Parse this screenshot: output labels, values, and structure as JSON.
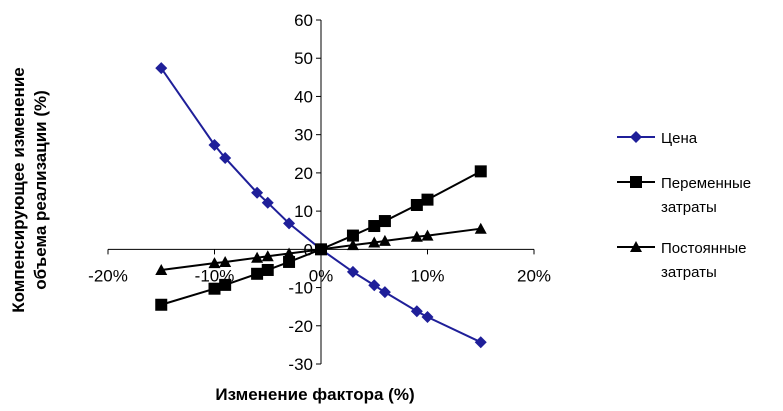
{
  "chart_data": {
    "type": "line",
    "xlabel": "Изменение  фактора (%)",
    "ylabel_lines": [
      "Компенсирующее  изменение",
      "объема реализации  (%)"
    ],
    "xlim": [
      -0.2,
      0.2
    ],
    "ylim": [
      -30,
      60
    ],
    "x_ticks": [
      -0.2,
      -0.1,
      0,
      0.1,
      0.2
    ],
    "x_tick_labels": [
      "-20%",
      "-10%",
      "0%",
      "10%",
      "20%"
    ],
    "y_ticks": [
      -30,
      -20,
      -10,
      0,
      10,
      20,
      30,
      40,
      50,
      60
    ],
    "y_tick_labels": [
      "-30",
      "-20",
      "-10",
      "0",
      "10",
      "20",
      "30",
      "40",
      "50",
      "60"
    ],
    "grid": false,
    "legend_position": "right",
    "series": [
      {
        "name": "Цена",
        "color": "#1f1f99",
        "marker": "diamond",
        "points": [
          [
            -0.15,
            47.4
          ],
          [
            -0.1,
            27.3
          ],
          [
            -0.09,
            23.9
          ],
          [
            -0.06,
            14.8
          ],
          [
            -0.05,
            12.2
          ],
          [
            -0.03,
            6.8
          ],
          [
            0,
            0
          ],
          [
            0.03,
            -5.9
          ],
          [
            0.05,
            -9.4
          ],
          [
            0.06,
            -11.2
          ],
          [
            0.09,
            -16.2
          ],
          [
            0.1,
            -17.7
          ],
          [
            0.15,
            -24.3
          ]
        ]
      },
      {
        "name": "Переменные затраты",
        "color": "#000000",
        "marker": "square",
        "points": [
          [
            -0.15,
            -14.5
          ],
          [
            -0.1,
            -10.3
          ],
          [
            -0.09,
            -9.3
          ],
          [
            -0.06,
            -6.4
          ],
          [
            -0.05,
            -5.4
          ],
          [
            -0.03,
            -3.3
          ],
          [
            0,
            0
          ],
          [
            0.03,
            3.6
          ],
          [
            0.05,
            6.1
          ],
          [
            0.06,
            7.4
          ],
          [
            0.09,
            11.6
          ],
          [
            0.1,
            13.0
          ],
          [
            0.15,
            20.4
          ]
        ]
      },
      {
        "name": "Постоянные затраты",
        "color": "#000000",
        "marker": "triangle",
        "points": [
          [
            -0.15,
            -5.4
          ],
          [
            -0.1,
            -3.6
          ],
          [
            -0.09,
            -3.3
          ],
          [
            -0.06,
            -2.2
          ],
          [
            -0.05,
            -1.8
          ],
          [
            -0.03,
            -1.1
          ],
          [
            0,
            0
          ],
          [
            0.03,
            1.1
          ],
          [
            0.05,
            1.8
          ],
          [
            0.06,
            2.2
          ],
          [
            0.09,
            3.3
          ],
          [
            0.1,
            3.6
          ],
          [
            0.15,
            5.4
          ]
        ]
      }
    ],
    "legend": [
      {
        "label_lines": [
          "Цена"
        ]
      },
      {
        "label_lines": [
          "Переменные",
          "затраты"
        ]
      },
      {
        "label_lines": [
          "Постоянные",
          "затраты"
        ]
      }
    ]
  }
}
